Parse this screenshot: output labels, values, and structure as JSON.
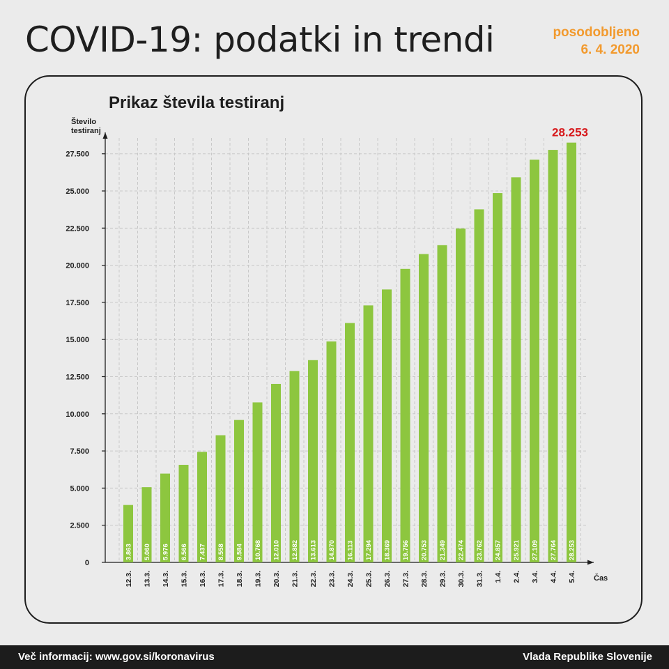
{
  "header": {
    "title": "COVID-19: podatki in trendi",
    "updated_label": "posodobljeno",
    "updated_date": "6. 4. 2020"
  },
  "footer": {
    "info": "Več informacij: www.gov.si/koronavirus",
    "org": "Vlada Republike Slovenije"
  },
  "colors": {
    "bar": "#8dc63f",
    "highlight": "#d7191c",
    "accent": "#f29a2e"
  },
  "chart_data": {
    "type": "bar",
    "title": "Prikaz števila testiranj",
    "ylabel": "Število testiranj",
    "xlabel": "Čas",
    "ylim": [
      0,
      28800
    ],
    "yticks": [
      0,
      2500,
      5000,
      7500,
      10000,
      12500,
      15000,
      17500,
      20000,
      22500,
      25000,
      27500
    ],
    "ytick_labels": [
      "0",
      "2.500",
      "5.000",
      "7.500",
      "10.000",
      "12.500",
      "15.000",
      "17.500",
      "20.000",
      "22.500",
      "25.000",
      "27.500"
    ],
    "categories": [
      "12.3.",
      "13.3.",
      "14.3.",
      "15.3.",
      "16.3.",
      "17.3.",
      "18.3.",
      "19.3.",
      "20.3.",
      "21.3.",
      "22.3.",
      "23.3.",
      "24.3.",
      "25.3.",
      "26.3.",
      "27.3.",
      "28.3.",
      "29.3.",
      "30.3.",
      "31.3.",
      "1.4.",
      "2.4.",
      "3.4.",
      "4.4.",
      "5.4."
    ],
    "values": [
      3863,
      5060,
      5976,
      6566,
      7437,
      8558,
      9584,
      10768,
      12010,
      12882,
      13613,
      14870,
      16113,
      17294,
      18369,
      19756,
      20753,
      21349,
      22474,
      23762,
      24857,
      25921,
      27109,
      27764,
      28253
    ],
    "value_labels": [
      "3.863",
      "5.060",
      "5.976",
      "6.566",
      "7.437",
      "8.558",
      "9.584",
      "10.768",
      "12.010",
      "12.882",
      "13.613",
      "14.870",
      "16.113",
      "17.294",
      "18.369",
      "19.756",
      "20.753",
      "21.349",
      "22.474",
      "23.762",
      "24.857",
      "25.921",
      "27.109",
      "27.764",
      "28.253"
    ],
    "highlight_label": "28.253",
    "grid": true,
    "legend": "none"
  }
}
